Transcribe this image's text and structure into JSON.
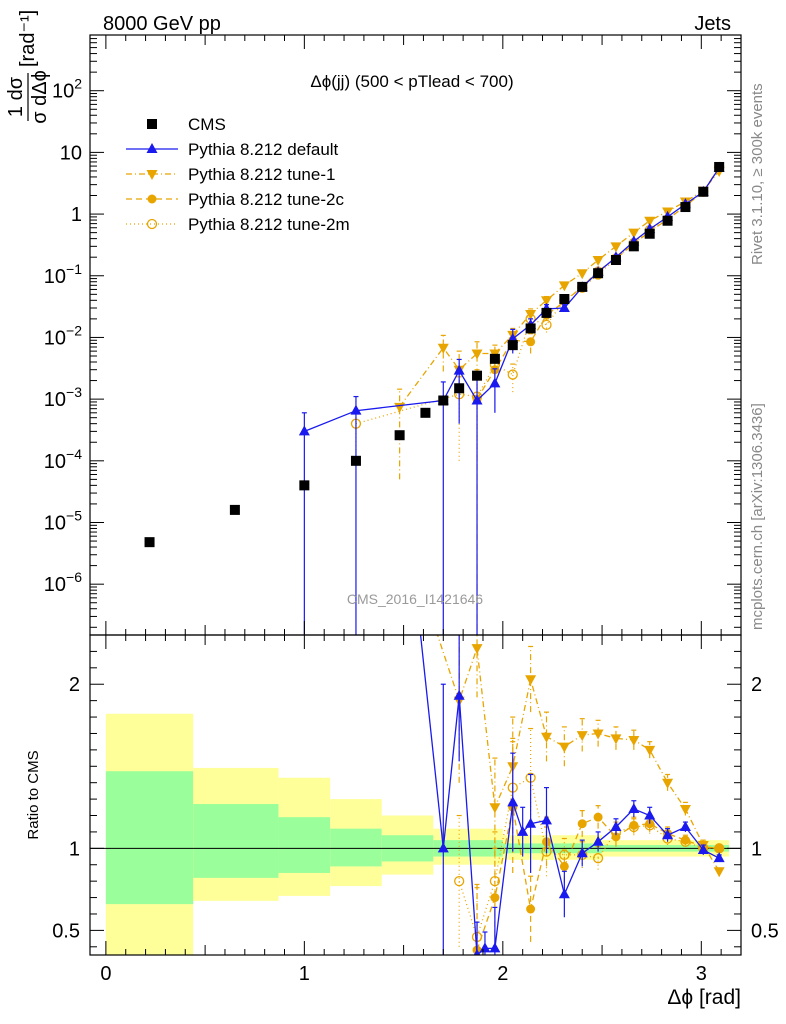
{
  "header": {
    "left": "8000 GeV pp",
    "right": "Jets"
  },
  "side_labels": {
    "rivet": "Rivet 3.1.10, ≥ 300k events",
    "mcplots": "mcplots.cern.ch [arXiv:1306.3436]"
  },
  "watermark": "CMS_2016_I1421646",
  "colors": {
    "cms": "#000000",
    "default": "#1a1aee",
    "tunes": "#e8a500",
    "band_inner": "#9aff9a",
    "band_outer": "#ffff9a"
  },
  "chart_data": [
    {
      "type": "scatter",
      "panel": "main",
      "title": "Δϕ(jj) (500 < pTlead <  700)",
      "ylabel": "1 dσ / σ dΔϕ [rad⁻¹]",
      "yscale": "log",
      "ylim": [
        1.5e-07,
        800
      ],
      "xlim": [
        -0.08,
        3.2
      ],
      "yticks": [
        {
          "v": 1e-06,
          "base": "10",
          "exp": "−6"
        },
        {
          "v": 1e-05,
          "base": "10",
          "exp": "−5"
        },
        {
          "v": 0.0001,
          "base": "10",
          "exp": "−4"
        },
        {
          "v": 0.001,
          "base": "10",
          "exp": "−3"
        },
        {
          "v": 0.01,
          "base": "10",
          "exp": "−2"
        },
        {
          "v": 0.1,
          "base": "10",
          "exp": "−1"
        },
        {
          "v": 1,
          "base": "1",
          "exp": ""
        },
        {
          "v": 10,
          "base": "10",
          "exp": ""
        },
        {
          "v": 100,
          "base": "10",
          "exp": "2"
        }
      ],
      "legend": [
        "CMS",
        "Pythia 8.212 default",
        "Pythia 8.212 tune-1",
        "Pythia 8.212 tune-2c",
        "Pythia 8.212 tune-2m"
      ],
      "series": [
        {
          "name": "CMS",
          "x": [
            0.22,
            0.65,
            1.0,
            1.26,
            1.48,
            1.61,
            1.7,
            1.78,
            1.87,
            1.96,
            2.05,
            2.14,
            2.22,
            2.31,
            2.4,
            2.48,
            2.57,
            2.66,
            2.74,
            2.83,
            2.92,
            3.01,
            3.09
          ],
          "y": [
            4.8e-06,
            1.6e-05,
            4e-05,
            0.0001,
            0.00026,
            0.0006,
            0.00095,
            0.0015,
            0.0024,
            0.0045,
            0.0075,
            0.014,
            0.025,
            0.042,
            0.066,
            0.11,
            0.18,
            0.3,
            0.48,
            0.78,
            1.3,
            2.3,
            5.8
          ]
        },
        {
          "name": "Pythia 8.212 default",
          "x": [
            1.0,
            1.26,
            1.7,
            1.78,
            1.87,
            1.96,
            2.05,
            2.14,
            2.22,
            2.31,
            2.4,
            2.48,
            2.57,
            2.66,
            2.74,
            2.83,
            2.92,
            3.01,
            3.09
          ],
          "y": [
            0.0003,
            0.00065,
            0.00095,
            0.0029,
            0.00095,
            0.0018,
            0.0095,
            0.016,
            0.029,
            0.03,
            0.065,
            0.115,
            0.2,
            0.36,
            0.57,
            0.9,
            1.45,
            2.3,
            5.6
          ],
          "err_lo": [
            0.0003,
            0.00065,
            0.00095,
            0.0025,
            0.00095,
            0.0012,
            0.004,
            0.004,
            0.005,
            0.004,
            0.005,
            0.006,
            0.01,
            0.015,
            0.02,
            0.03,
            0.05,
            0.08,
            0.15
          ],
          "err_hi": [
            0.0003,
            0.00045,
            0.00095,
            0.0015,
            0.0015,
            0.0013,
            0.004,
            0.004,
            0.005,
            0.004,
            0.005,
            0.006,
            0.01,
            0.015,
            0.02,
            0.03,
            0.05,
            0.08,
            0.15
          ]
        },
        {
          "name": "Pythia 8.212 tune-1",
          "x": [
            1.48,
            1.7,
            1.78,
            1.87,
            1.96,
            2.05,
            2.14,
            2.22,
            2.31,
            2.4,
            2.48,
            2.57,
            2.66,
            2.74,
            2.83,
            2.92,
            3.01,
            3.09
          ],
          "y": [
            0.00075,
            0.0068,
            0.003,
            0.0055,
            0.0055,
            0.011,
            0.024,
            0.04,
            0.07,
            0.11,
            0.18,
            0.3,
            0.5,
            0.78,
            1.1,
            1.6,
            2.4,
            5.0
          ],
          "err_lo": [
            0.0007,
            0.004,
            0.002,
            0.003,
            0.002,
            0.003,
            0.005,
            0.006,
            0.008,
            0.01,
            0.015,
            0.02,
            0.03,
            0.04,
            0.05,
            0.06,
            0.08,
            0.12
          ],
          "err_hi": [
            0.0007,
            0.004,
            0.003,
            0.003,
            0.002,
            0.003,
            0.005,
            0.006,
            0.008,
            0.01,
            0.015,
            0.02,
            0.03,
            0.04,
            0.05,
            0.06,
            0.08,
            0.12
          ]
        },
        {
          "name": "Pythia 8.212 tune-2c",
          "x": [
            1.87,
            1.96,
            2.05,
            2.14,
            2.22,
            2.31,
            2.4,
            2.48,
            2.57,
            2.66,
            2.74,
            2.83,
            2.92,
            3.01,
            3.09
          ],
          "y": [
            0.001,
            0.003,
            0.009,
            0.0085,
            0.023,
            0.038,
            0.066,
            0.12,
            0.19,
            0.33,
            0.52,
            0.82,
            1.35,
            2.3,
            5.8
          ],
          "err_lo": [
            0.001,
            0.0015,
            0.003,
            0.003,
            0.004,
            0.005,
            0.006,
            0.008,
            0.01,
            0.015,
            0.02,
            0.03,
            0.05,
            0.08,
            0.15
          ],
          "err_hi": [
            0.002,
            0.0015,
            0.003,
            0.003,
            0.004,
            0.005,
            0.006,
            0.008,
            0.01,
            0.015,
            0.02,
            0.03,
            0.05,
            0.08,
            0.15
          ]
        },
        {
          "name": "Pythia 8.212 tune-2m",
          "x": [
            1.26,
            1.78,
            1.87,
            1.96,
            2.05,
            2.14,
            2.22,
            2.31,
            2.4,
            2.48,
            2.57,
            2.66,
            2.74,
            2.83,
            2.92,
            3.01,
            3.09
          ],
          "y": [
            0.0004,
            0.0012,
            0.0011,
            0.0036,
            0.0025,
            0.02,
            0.016,
            0.04,
            0.064,
            0.105,
            0.19,
            0.34,
            0.55,
            0.82,
            1.35,
            2.3,
            5.8
          ],
          "err_lo": [
            0.00025,
            0.0011,
            0.001,
            0.0015,
            0.0012,
            0.005,
            0.004,
            0.005,
            0.006,
            0.008,
            0.01,
            0.015,
            0.02,
            0.03,
            0.05,
            0.08,
            0.15
          ],
          "err_hi": [
            0.00025,
            0.0011,
            0.001,
            0.0015,
            0.0012,
            0.005,
            0.004,
            0.005,
            0.006,
            0.008,
            0.01,
            0.015,
            0.02,
            0.03,
            0.05,
            0.08,
            0.15
          ]
        }
      ]
    },
    {
      "type": "line",
      "panel": "ratio",
      "xlabel": "Δϕ [rad]",
      "ylabel": "Ratio to CMS",
      "ylim": [
        0.35,
        2.3
      ],
      "xlim": [
        -0.08,
        3.2
      ],
      "yticks": [
        0.5,
        1,
        2
      ],
      "xticks": [
        0,
        1,
        2,
        3
      ],
      "bands": [
        {
          "x0": 0.0,
          "x1": 0.44,
          "outer": [
            0.25,
            1.82
          ],
          "inner": [
            0.66,
            1.47
          ]
        },
        {
          "x0": 0.44,
          "x1": 0.87,
          "outer": [
            0.68,
            1.49
          ],
          "inner": [
            0.82,
            1.27
          ]
        },
        {
          "x0": 0.87,
          "x1": 1.13,
          "outer": [
            0.71,
            1.43
          ],
          "inner": [
            0.85,
            1.19
          ]
        },
        {
          "x0": 1.13,
          "x1": 1.39,
          "outer": [
            0.77,
            1.3
          ],
          "inner": [
            0.89,
            1.12
          ]
        },
        {
          "x0": 1.39,
          "x1": 1.65,
          "outer": [
            0.84,
            1.2
          ],
          "inner": [
            0.92,
            1.08
          ]
        },
        {
          "x0": 1.65,
          "x1": 2.0,
          "outer": [
            0.9,
            1.12
          ],
          "inner": [
            0.95,
            1.05
          ]
        },
        {
          "x0": 2.0,
          "x1": 2.5,
          "outer": [
            0.93,
            1.08
          ],
          "inner": [
            0.97,
            1.03
          ]
        },
        {
          "x0": 2.5,
          "x1": 3.14,
          "outer": [
            0.95,
            1.05
          ],
          "inner": [
            0.98,
            1.02
          ]
        }
      ],
      "series": [
        {
          "name": "Pythia 8.212 default",
          "x": [
            1.48,
            1.7,
            1.78,
            1.87,
            1.91,
            1.96,
            2.05,
            2.1,
            2.14,
            2.22,
            2.31,
            2.4,
            2.48,
            2.57,
            2.66,
            2.74,
            2.83,
            2.92,
            3.01,
            3.09
          ],
          "y": [
            3.5,
            1.0,
            1.93,
            0.35,
            0.39,
            0.39,
            1.28,
            1.1,
            1.15,
            1.17,
            0.72,
            0.97,
            1.04,
            1.13,
            1.24,
            1.2,
            1.08,
            1.13,
            0.99,
            0.94
          ],
          "err_lo": [
            0.0,
            0.8,
            0.4,
            0.2,
            0.1,
            0.2,
            0.3,
            0.15,
            0.3,
            0.2,
            0.14,
            0.08,
            0.06,
            0.05,
            0.05,
            0.05,
            0.04,
            0.03,
            0.03,
            0.02
          ],
          "err_hi": [
            0.0,
            1.0,
            0.4,
            0.2,
            0.1,
            0.25,
            0.3,
            0.15,
            0.3,
            0.2,
            0.14,
            0.08,
            0.06,
            0.05,
            0.05,
            0.05,
            0.04,
            0.03,
            0.03,
            0.02
          ]
        },
        {
          "name": "Pythia 8.212 tune-1",
          "x": [
            1.48,
            1.78,
            1.87,
            1.96,
            2.05,
            2.14,
            2.22,
            2.31,
            2.4,
            2.48,
            2.57,
            2.66,
            2.74,
            2.83,
            2.92,
            3.01,
            3.09
          ],
          "y": [
            3.0,
            1.9,
            2.22,
            1.25,
            1.5,
            2.03,
            1.68,
            1.62,
            1.69,
            1.7,
            1.67,
            1.66,
            1.6,
            1.4,
            1.24,
            1.02,
            0.86
          ],
          "err_lo": [
            0.0,
            0.5,
            0.3,
            0.3,
            0.3,
            0.2,
            0.15,
            0.12,
            0.1,
            0.08,
            0.07,
            0.06,
            0.05,
            0.05,
            0.04,
            0.03,
            0.02
          ],
          "err_hi": [
            0.0,
            0.5,
            0.3,
            0.3,
            0.3,
            0.2,
            0.15,
            0.12,
            0.1,
            0.08,
            0.07,
            0.06,
            0.05,
            0.05,
            0.04,
            0.03,
            0.02
          ]
        },
        {
          "name": "Pythia 8.212 tune-2c",
          "x": [
            1.87,
            1.96,
            2.05,
            2.14,
            2.22,
            2.31,
            2.4,
            2.48,
            2.57,
            2.66,
            2.74,
            2.83,
            2.92,
            3.01,
            3.09
          ],
          "y": [
            0.38,
            0.7,
            1.25,
            0.63,
            1.04,
            0.89,
            1.15,
            1.19,
            1.07,
            1.14,
            1.15,
            1.09,
            1.05,
            1.01,
            1.0
          ],
          "err_lo": [
            0.3,
            0.3,
            0.4,
            0.2,
            0.15,
            0.1,
            0.08,
            0.07,
            0.06,
            0.05,
            0.05,
            0.04,
            0.03,
            0.03,
            0.02
          ],
          "err_hi": [
            0.4,
            0.3,
            0.4,
            0.2,
            0.15,
            0.1,
            0.08,
            0.07,
            0.06,
            0.05,
            0.05,
            0.04,
            0.03,
            0.03,
            0.02
          ]
        },
        {
          "name": "Pythia 8.212 tune-2m",
          "x": [
            1.78,
            1.87,
            1.96,
            2.05,
            2.14,
            2.22,
            2.31,
            2.4,
            2.48,
            2.57,
            2.66,
            2.74,
            2.83,
            2.92,
            3.01,
            3.09
          ],
          "y": [
            0.8,
            0.46,
            0.8,
            1.37,
            1.43,
            0.98,
            0.96,
            0.96,
            0.94,
            1.1,
            1.13,
            1.14,
            1.06,
            1.04,
            1.0,
            1.0
          ],
          "err_lo": [
            0.4,
            0.3,
            0.3,
            0.3,
            0.3,
            0.15,
            0.1,
            0.08,
            0.07,
            0.06,
            0.05,
            0.05,
            0.04,
            0.03,
            0.03,
            0.02
          ],
          "err_hi": [
            0.4,
            0.3,
            0.3,
            0.3,
            0.3,
            0.15,
            0.1,
            0.08,
            0.07,
            0.06,
            0.05,
            0.05,
            0.04,
            0.03,
            0.03,
            0.02
          ]
        }
      ]
    }
  ]
}
